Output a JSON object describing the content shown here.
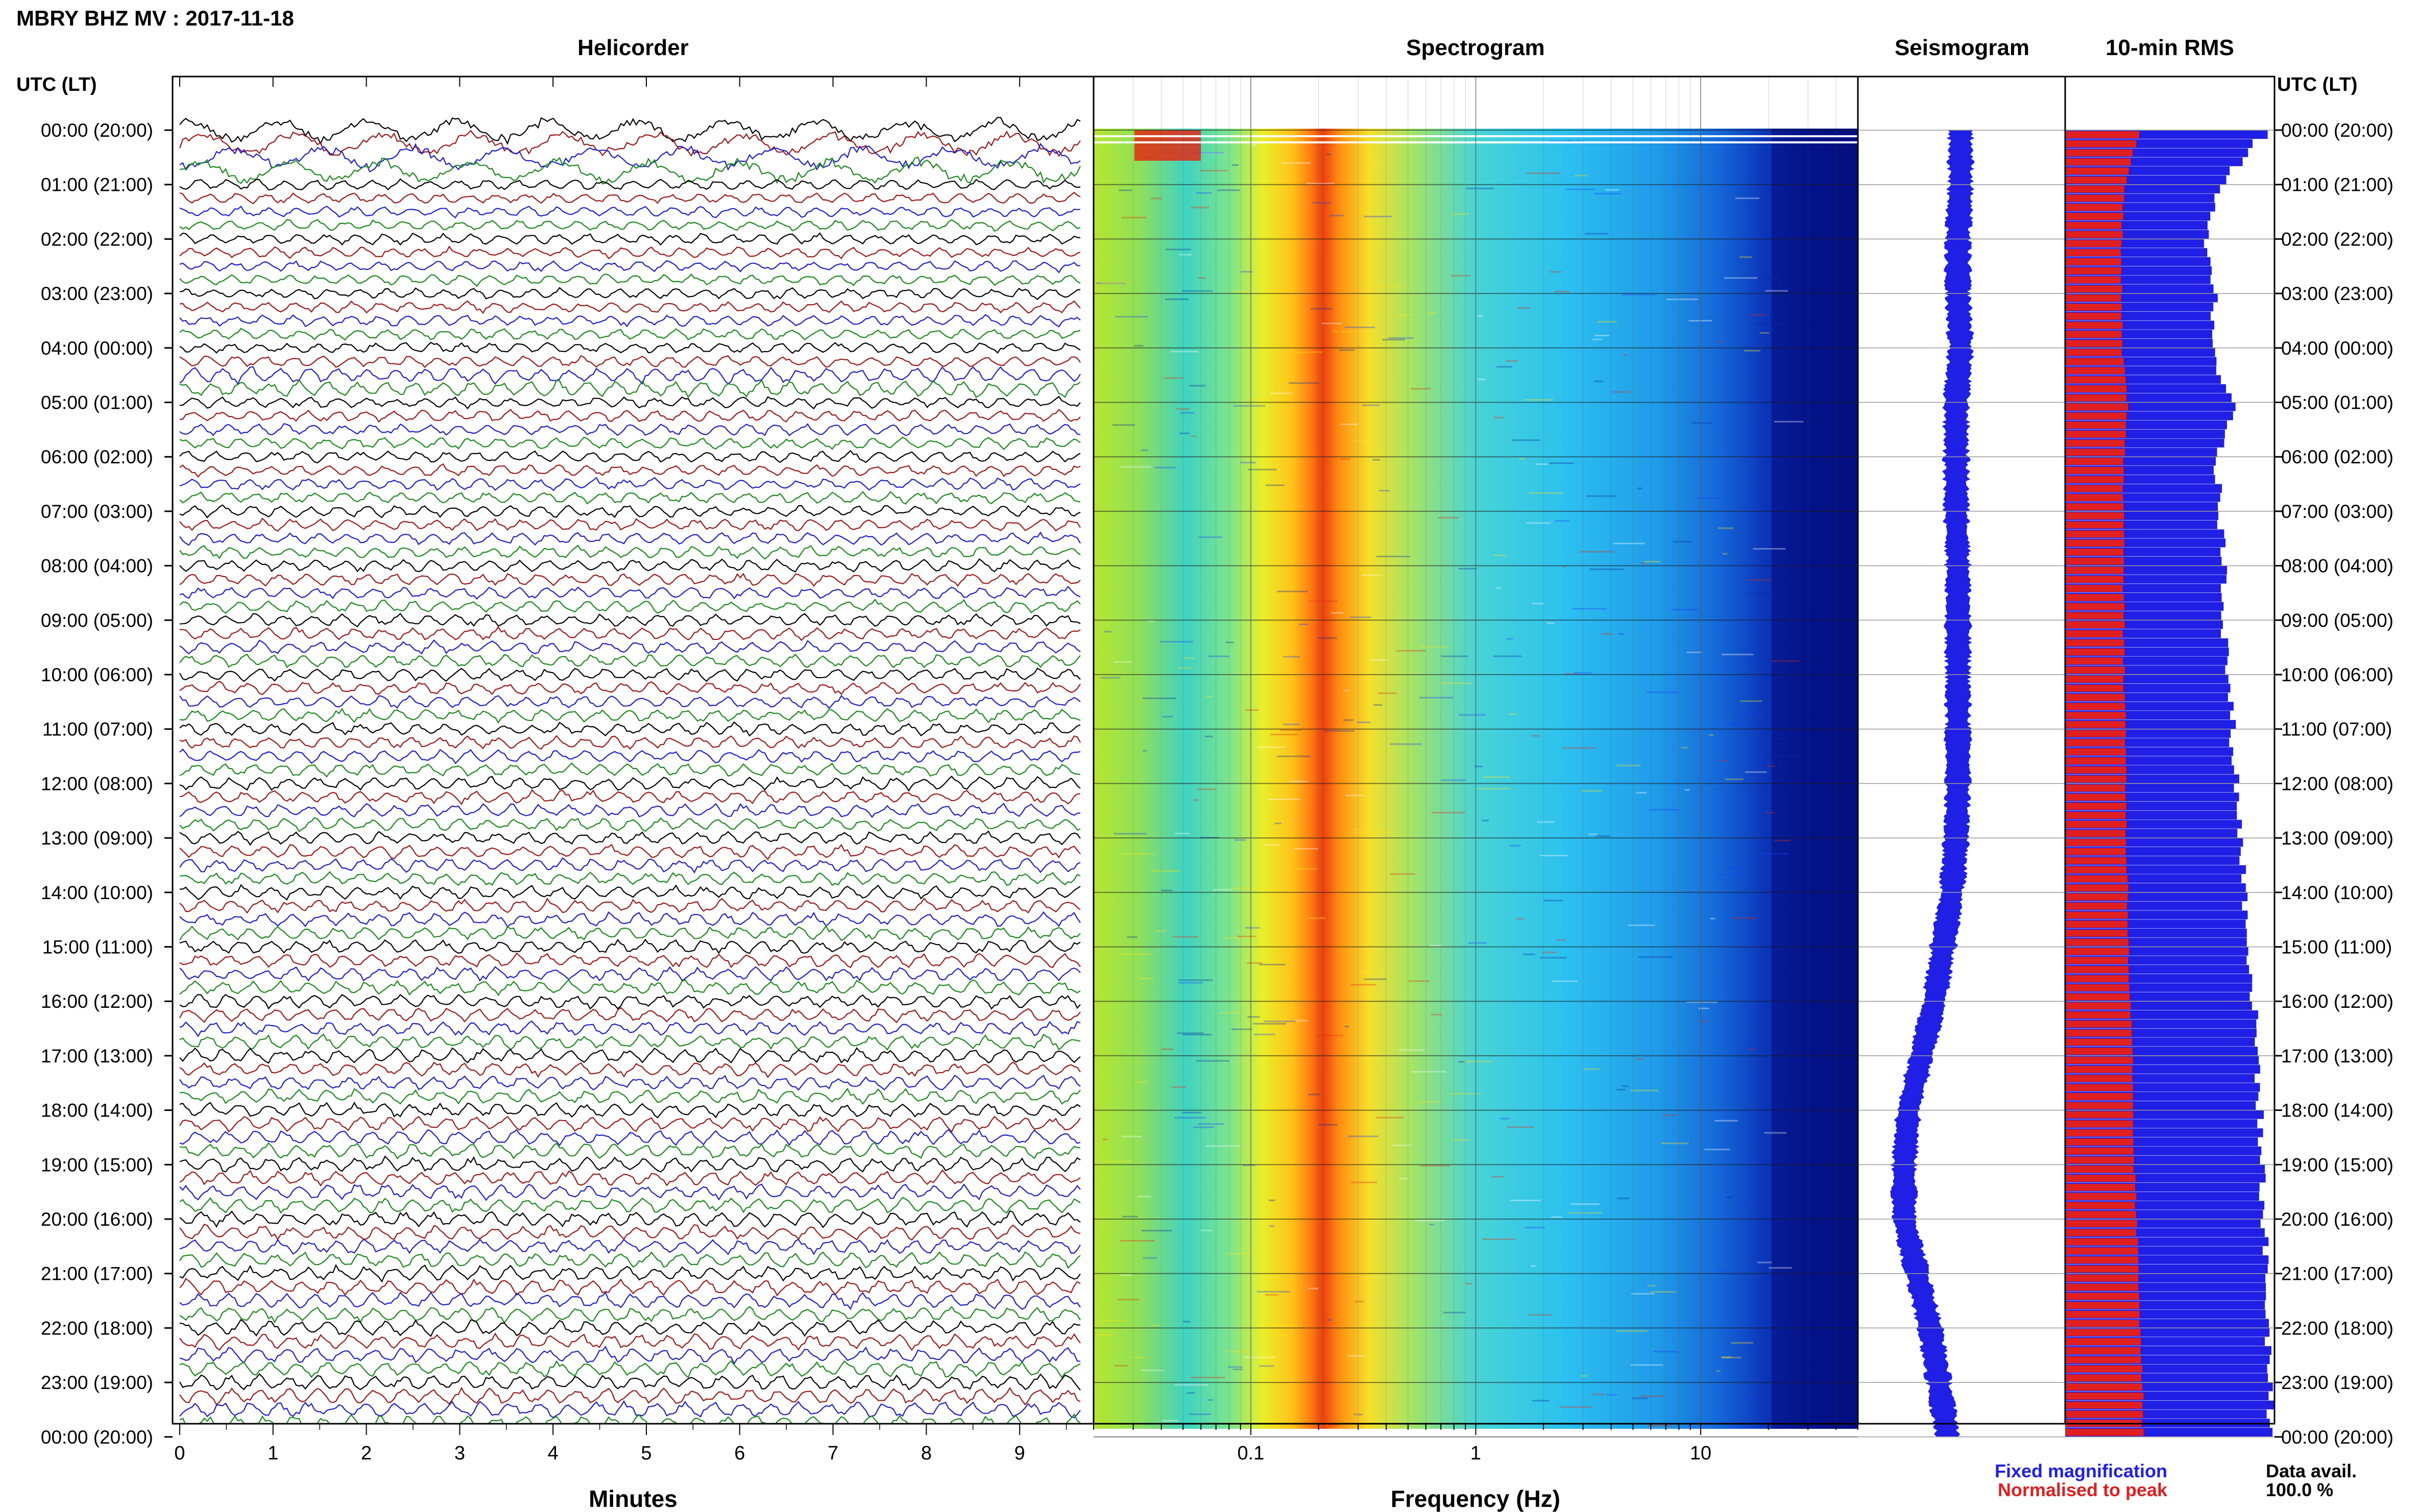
{
  "header": {
    "title": "MBRY BHZ MV : 2017-11-18"
  },
  "panels": {
    "helicorder": "Helicorder",
    "spectrogram": "Spectrogram",
    "seismogram": "Seismogram",
    "rms": "10-min RMS"
  },
  "axis": {
    "time_label": "UTC (LT)",
    "minutes_label": "Minutes",
    "frequency_label": "Frequency (Hz)"
  },
  "legend": {
    "fixed": "Fixed magnification",
    "normalised": "Normalised to peak",
    "fixed_color": "#1f1fe6",
    "normalised_color": "#e02020"
  },
  "availability": {
    "label": "Data avail.",
    "value": "100.0 %"
  },
  "chart_data": {
    "type": "heatmap",
    "station": "MBRY",
    "channel": "BHZ",
    "network": "MV",
    "date": "2017-11-18",
    "hour_labels": [
      "00:00 (20:00)",
      "01:00 (21:00)",
      "02:00 (22:00)",
      "03:00 (23:00)",
      "04:00 (00:00)",
      "05:00 (01:00)",
      "06:00 (02:00)",
      "07:00 (03:00)",
      "08:00 (04:00)",
      "09:00 (05:00)",
      "10:00 (06:00)",
      "11:00 (07:00)",
      "12:00 (08:00)",
      "13:00 (09:00)",
      "14:00 (10:00)",
      "15:00 (11:00)",
      "16:00 (12:00)",
      "17:00 (13:00)",
      "18:00 (14:00)",
      "19:00 (15:00)",
      "20:00 (16:00)",
      "21:00 (17:00)",
      "22:00 (18:00)",
      "23:00 (19:00)",
      "00:00 (20:00)"
    ],
    "minutes_ticks": [
      "0",
      "1",
      "2",
      "3",
      "4",
      "5",
      "6",
      "7",
      "8",
      "9"
    ],
    "minutes_range": [
      0,
      10
    ],
    "trace_colors": [
      "#000000",
      "#a01818",
      "#1f1fd0",
      "#1a8a1a"
    ],
    "frequency_ticks": [
      {
        "value": 0.1,
        "label": "0.1"
      },
      {
        "value": 1,
        "label": "1"
      },
      {
        "value": 10,
        "label": "10"
      }
    ],
    "frequency_range": [
      0.02,
      50
    ],
    "frequency_scale": "log",
    "microseism_peak_hz": 0.28,
    "seismogram_amplitude_by_hour": [
      0.55,
      0.55,
      0.58,
      0.58,
      0.55,
      0.6,
      0.6,
      0.6,
      0.58,
      0.58,
      0.58,
      0.58,
      0.58,
      0.6,
      0.65,
      0.75,
      0.85,
      1.0,
      1.15,
      1.2,
      1.2,
      1.05,
      0.9,
      0.8,
      0.7
    ],
    "rms_fixed_by_hour": [
      0.95,
      0.72,
      0.68,
      0.72,
      0.7,
      0.82,
      0.72,
      0.74,
      0.76,
      0.76,
      0.78,
      0.8,
      0.82,
      0.84,
      0.86,
      0.88,
      0.9,
      0.92,
      0.93,
      0.94,
      0.95,
      0.96,
      0.97,
      0.98,
      0.98
    ],
    "rms_normalised_by_hour": [
      0.35,
      0.28,
      0.27,
      0.27,
      0.27,
      0.3,
      0.28,
      0.28,
      0.28,
      0.28,
      0.28,
      0.29,
      0.29,
      0.29,
      0.3,
      0.3,
      0.31,
      0.32,
      0.32,
      0.33,
      0.34,
      0.35,
      0.36,
      0.37,
      0.37
    ]
  }
}
